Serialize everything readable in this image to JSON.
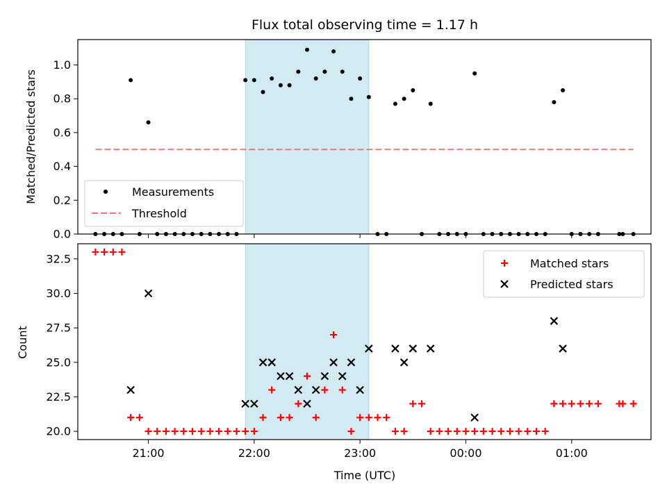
{
  "title": "Flux total observing time = 1.17 h",
  "xlabel": "Time (UTC)",
  "x_ticks": [
    "21:00",
    "22:00",
    "23:00",
    "00:00",
    "01:00"
  ],
  "colors": {
    "highlight": "#add8e6",
    "threshold": "#ff7070",
    "matched": "#ff0000",
    "predicted": "#000000",
    "measurement": "#000000"
  },
  "chart_data": [
    {
      "type": "scatter",
      "ylabel": "Matched/Predicted stars",
      "ylim": [
        0,
        1.15
      ],
      "y_ticks": [
        "0.0",
        "0.2",
        "0.4",
        "0.6",
        "0.8",
        "1.0"
      ],
      "highlight_x": [
        "21:55",
        "23:05"
      ],
      "legend": {
        "position": "lower-left",
        "entries": [
          "Measurements",
          "Threshold"
        ]
      },
      "threshold": {
        "name": "Threshold",
        "y": 0.5,
        "x": [
          "20:30",
          "01:35"
        ]
      },
      "measurements": {
        "name": "Measurements",
        "points": [
          [
            "20:30",
            0
          ],
          [
            "20:35",
            0
          ],
          [
            "20:40",
            0
          ],
          [
            "20:45",
            0
          ],
          [
            "20:50",
            0.91
          ],
          [
            "20:55",
            0
          ],
          [
            "21:00",
            0.66
          ],
          [
            "21:05",
            0
          ],
          [
            "21:10",
            0
          ],
          [
            "21:15",
            0
          ],
          [
            "21:20",
            0
          ],
          [
            "21:25",
            0
          ],
          [
            "21:30",
            0
          ],
          [
            "21:35",
            0
          ],
          [
            "21:40",
            0
          ],
          [
            "21:45",
            0
          ],
          [
            "21:50",
            0
          ],
          [
            "21:55",
            0.91
          ],
          [
            "22:00",
            0.91
          ],
          [
            "22:05",
            0.84
          ],
          [
            "22:10",
            0.92
          ],
          [
            "22:15",
            0.88
          ],
          [
            "22:20",
            0.88
          ],
          [
            "22:25",
            0.96
          ],
          [
            "22:30",
            1.09
          ],
          [
            "22:35",
            0.92
          ],
          [
            "22:40",
            0.96
          ],
          [
            "22:45",
            1.08
          ],
          [
            "22:50",
            0.96
          ],
          [
            "22:55",
            0.8
          ],
          [
            "23:00",
            0.92
          ],
          [
            "23:05",
            0.81
          ],
          [
            "23:10",
            0
          ],
          [
            "23:15",
            0
          ],
          [
            "23:20",
            0.77
          ],
          [
            "23:25",
            0.8
          ],
          [
            "23:30",
            0.85
          ],
          [
            "23:35",
            0
          ],
          [
            "23:40",
            0.77
          ],
          [
            "23:45",
            0
          ],
          [
            "23:50",
            0
          ],
          [
            "23:55",
            0
          ],
          [
            "00:00",
            0
          ],
          [
            "00:05",
            0.95
          ],
          [
            "00:10",
            0
          ],
          [
            "00:15",
            0
          ],
          [
            "00:20",
            0
          ],
          [
            "00:25",
            0
          ],
          [
            "00:30",
            0
          ],
          [
            "00:35",
            0
          ],
          [
            "00:40",
            0
          ],
          [
            "00:45",
            0
          ],
          [
            "00:50",
            0.78
          ],
          [
            "00:55",
            0.85
          ],
          [
            "01:00",
            0
          ],
          [
            "01:05",
            0
          ],
          [
            "01:10",
            0
          ],
          [
            "01:15",
            0
          ],
          [
            "01:27",
            0
          ],
          [
            "01:29",
            0
          ],
          [
            "01:35",
            0
          ]
        ]
      }
    },
    {
      "type": "scatter",
      "ylabel": "Count",
      "ylim": [
        19.4,
        33.6
      ],
      "y_ticks": [
        "20.0",
        "22.5",
        "25.0",
        "27.5",
        "30.0",
        "32.5"
      ],
      "highlight_x": [
        "21:55",
        "23:05"
      ],
      "legend": {
        "position": "top-right",
        "entries": [
          "Matched stars",
          "Predicted stars"
        ]
      },
      "series": [
        {
          "name": "Matched stars",
          "marker": "plus",
          "points": [
            [
              "20:30",
              33
            ],
            [
              "20:35",
              33
            ],
            [
              "20:40",
              33
            ],
            [
              "20:45",
              33
            ],
            [
              "20:50",
              21
            ],
            [
              "20:55",
              21
            ],
            [
              "21:00",
              20
            ],
            [
              "21:05",
              20
            ],
            [
              "21:10",
              20
            ],
            [
              "21:15",
              20
            ],
            [
              "21:20",
              20
            ],
            [
              "21:25",
              20
            ],
            [
              "21:30",
              20
            ],
            [
              "21:35",
              20
            ],
            [
              "21:40",
              20
            ],
            [
              "21:45",
              20
            ],
            [
              "21:50",
              20
            ],
            [
              "21:55",
              20
            ],
            [
              "22:00",
              20
            ],
            [
              "22:05",
              21
            ],
            [
              "22:10",
              23
            ],
            [
              "22:15",
              21
            ],
            [
              "22:20",
              21
            ],
            [
              "22:25",
              22
            ],
            [
              "22:30",
              24
            ],
            [
              "22:35",
              21
            ],
            [
              "22:40",
              23
            ],
            [
              "22:45",
              27
            ],
            [
              "22:50",
              23
            ],
            [
              "22:55",
              20
            ],
            [
              "23:00",
              21
            ],
            [
              "23:05",
              21
            ],
            [
              "23:10",
              21
            ],
            [
              "23:15",
              21
            ],
            [
              "23:20",
              20
            ],
            [
              "23:25",
              20
            ],
            [
              "23:30",
              22
            ],
            [
              "23:35",
              22
            ],
            [
              "23:40",
              20
            ],
            [
              "23:45",
              20
            ],
            [
              "23:50",
              20
            ],
            [
              "23:55",
              20
            ],
            [
              "00:00",
              20
            ],
            [
              "00:05",
              20
            ],
            [
              "00:10",
              20
            ],
            [
              "00:15",
              20
            ],
            [
              "00:20",
              20
            ],
            [
              "00:25",
              20
            ],
            [
              "00:30",
              20
            ],
            [
              "00:35",
              20
            ],
            [
              "00:40",
              20
            ],
            [
              "00:45",
              20
            ],
            [
              "00:50",
              22
            ],
            [
              "00:55",
              22
            ],
            [
              "01:00",
              22
            ],
            [
              "01:05",
              22
            ],
            [
              "01:10",
              22
            ],
            [
              "01:15",
              22
            ],
            [
              "01:27",
              22
            ],
            [
              "01:29",
              22
            ],
            [
              "01:35",
              22
            ]
          ]
        },
        {
          "name": "Predicted stars",
          "marker": "x",
          "points": [
            [
              "20:50",
              23
            ],
            [
              "21:00",
              30
            ],
            [
              "21:55",
              22
            ],
            [
              "22:00",
              22
            ],
            [
              "22:05",
              25
            ],
            [
              "22:10",
              25
            ],
            [
              "22:15",
              24
            ],
            [
              "22:20",
              24
            ],
            [
              "22:25",
              23
            ],
            [
              "22:30",
              22
            ],
            [
              "22:35",
              23
            ],
            [
              "22:40",
              24
            ],
            [
              "22:45",
              25
            ],
            [
              "22:50",
              24
            ],
            [
              "22:55",
              25
            ],
            [
              "23:00",
              23
            ],
            [
              "23:05",
              26
            ],
            [
              "23:20",
              26
            ],
            [
              "23:25",
              25
            ],
            [
              "23:30",
              26
            ],
            [
              "23:40",
              26
            ],
            [
              "00:05",
              21
            ],
            [
              "00:50",
              28
            ],
            [
              "00:55",
              26
            ]
          ]
        }
      ]
    }
  ]
}
